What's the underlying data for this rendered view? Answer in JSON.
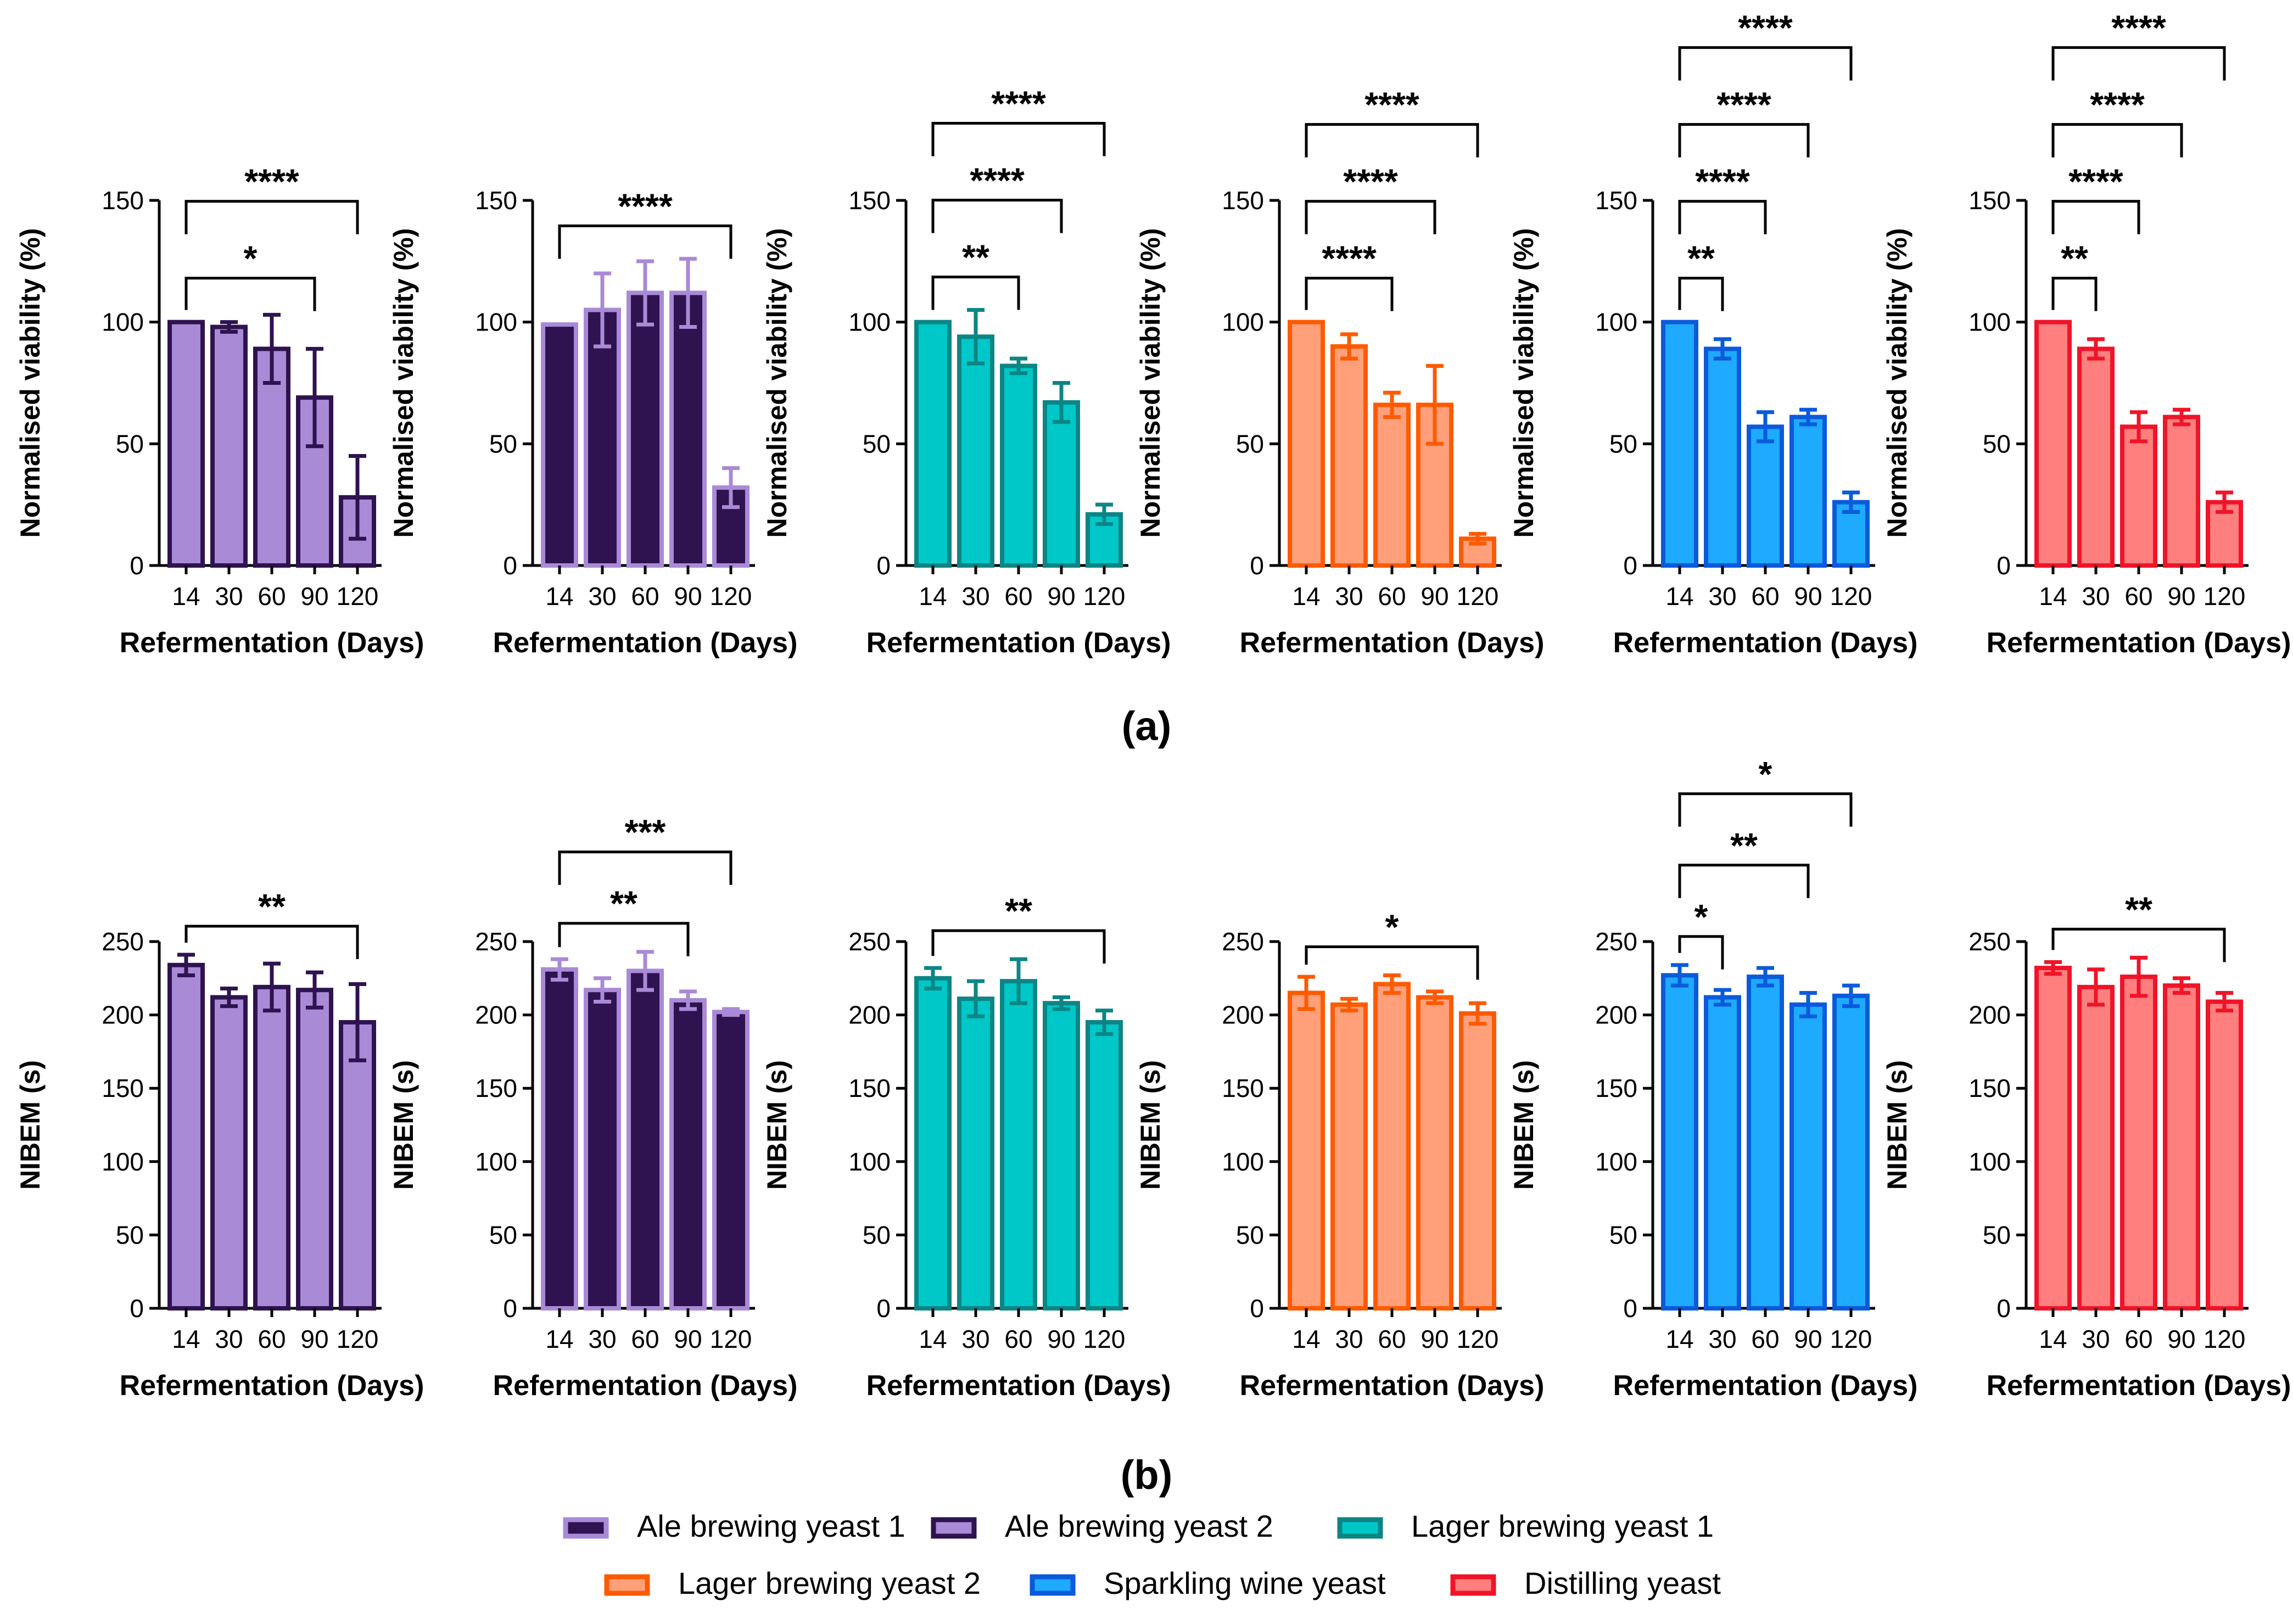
{
  "panel_labels": {
    "a": "(a)",
    "b": "(b)"
  },
  "legend": [
    {
      "name": "Ale brewing yeast 1",
      "fill": "#2e1350",
      "stroke": "#a98ad6"
    },
    {
      "name": "Ale brewing yeast 2",
      "fill": "#a98ad6",
      "stroke": "#2e1350"
    },
    {
      "name": "Lager brewing yeast 1",
      "fill": "#00c7c8",
      "stroke": "#0c8585"
    },
    {
      "name": "Lager brewing yeast 2",
      "fill": "#ffa07a",
      "stroke": "#ff5a00"
    },
    {
      "name": "Sparkling wine yeast",
      "fill": "#1eaaff",
      "stroke": "#0a5adc"
    },
    {
      "name": "Distilling yeast",
      "fill": "#ff7f7f",
      "stroke": "#f01428"
    }
  ],
  "chart_data": [
    {
      "type": "bar",
      "panel": "a",
      "series": "Ale brewing yeast 2",
      "fill": "#a98ad6",
      "stroke": "#2e1350",
      "categories": [
        "14",
        "30",
        "60",
        "90",
        "120"
      ],
      "values": [
        100,
        98,
        89,
        69,
        28
      ],
      "errors": [
        0,
        2,
        14,
        20,
        17
      ],
      "xlabel": "Refermentation (Days)",
      "ylabel": "Normalised viability (%)",
      "ylim": [
        0,
        150
      ],
      "yticks": [
        0,
        50,
        100,
        150
      ],
      "brackets": [
        {
          "from": 0,
          "to": 3,
          "label": "*"
        },
        {
          "from": 0,
          "to": 4,
          "label": "****"
        }
      ]
    },
    {
      "type": "bar",
      "panel": "a",
      "series": "Ale brewing yeast 1",
      "fill": "#2e1350",
      "stroke": "#a98ad6",
      "categories": [
        "14",
        "30",
        "60",
        "90",
        "120"
      ],
      "values": [
        99,
        105,
        112,
        112,
        32
      ],
      "errors": [
        0,
        15,
        13,
        14,
        8
      ],
      "xlabel": "Refermentation (Days)",
      "ylabel": "Normalised viability (%)",
      "ylim": [
        0,
        150
      ],
      "yticks": [
        0,
        50,
        100,
        150
      ],
      "brackets": [
        {
          "from": 0,
          "to": 4,
          "label": "****"
        }
      ]
    },
    {
      "type": "bar",
      "panel": "a",
      "series": "Lager brewing yeast 1",
      "fill": "#00c7c8",
      "stroke": "#0c8585",
      "categories": [
        "14",
        "30",
        "60",
        "90",
        "120"
      ],
      "values": [
        100,
        94,
        82,
        67,
        21
      ],
      "errors": [
        0,
        11,
        3,
        8,
        4
      ],
      "xlabel": "Refermentation (Days)",
      "ylabel": "Normalised viability (%)",
      "ylim": [
        0,
        150
      ],
      "yticks": [
        0,
        50,
        100,
        150
      ],
      "brackets": [
        {
          "from": 0,
          "to": 2,
          "label": "**"
        },
        {
          "from": 0,
          "to": 3,
          "label": "****"
        },
        {
          "from": 0,
          "to": 4,
          "label": "****"
        }
      ]
    },
    {
      "type": "bar",
      "panel": "a",
      "series": "Lager brewing yeast 2",
      "fill": "#ffa07a",
      "stroke": "#ff5a00",
      "categories": [
        "14",
        "30",
        "60",
        "90",
        "120"
      ],
      "values": [
        100,
        90,
        66,
        66,
        11
      ],
      "errors": [
        0,
        5,
        5,
        16,
        2
      ],
      "xlabel": "Refermentation (Days)",
      "ylabel": "Normalised viability (%)",
      "ylim": [
        0,
        150
      ],
      "yticks": [
        0,
        50,
        100,
        150
      ],
      "brackets": [
        {
          "from": 0,
          "to": 2,
          "label": "****"
        },
        {
          "from": 0,
          "to": 3,
          "label": "****"
        },
        {
          "from": 0,
          "to": 4,
          "label": "****"
        }
      ]
    },
    {
      "type": "bar",
      "panel": "a",
      "series": "Sparkling wine yeast",
      "fill": "#1eaaff",
      "stroke": "#0a5adc",
      "categories": [
        "14",
        "30",
        "60",
        "90",
        "120"
      ],
      "values": [
        100,
        89,
        57,
        61,
        26
      ],
      "errors": [
        0,
        4,
        6,
        3,
        4
      ],
      "xlabel": "Refermentation (Days)",
      "ylabel": "Normalised viability (%)",
      "ylim": [
        0,
        150
      ],
      "yticks": [
        0,
        50,
        100,
        150
      ],
      "brackets": [
        {
          "from": 0,
          "to": 1,
          "label": "**"
        },
        {
          "from": 0,
          "to": 2,
          "label": "****"
        },
        {
          "from": 0,
          "to": 3,
          "label": "****"
        },
        {
          "from": 0,
          "to": 4,
          "label": "****"
        }
      ]
    },
    {
      "type": "bar",
      "panel": "a",
      "series": "Distilling yeast",
      "fill": "#ff7f7f",
      "stroke": "#f01428",
      "categories": [
        "14",
        "30",
        "60",
        "90",
        "120"
      ],
      "values": [
        100,
        89,
        57,
        61,
        26
      ],
      "errors": [
        0,
        4,
        6,
        3,
        4
      ],
      "xlabel": "Refermentation (Days)",
      "ylabel": "Normalised viability (%)",
      "ylim": [
        0,
        150
      ],
      "yticks": [
        0,
        50,
        100,
        150
      ],
      "brackets": [
        {
          "from": 0,
          "to": 1,
          "label": "**"
        },
        {
          "from": 0,
          "to": 2,
          "label": "****"
        },
        {
          "from": 0,
          "to": 3,
          "label": "****"
        },
        {
          "from": 0,
          "to": 4,
          "label": "****"
        }
      ]
    },
    {
      "type": "bar",
      "panel": "b",
      "series": "Ale brewing yeast 2",
      "fill": "#a98ad6",
      "stroke": "#2e1350",
      "categories": [
        "14",
        "30",
        "60",
        "90",
        "120"
      ],
      "values": [
        234,
        212,
        219,
        217,
        195
      ],
      "errors": [
        7,
        6,
        16,
        12,
        26
      ],
      "xlabel": "Refermentation (Days)",
      "ylabel": "NIBEM (s)",
      "ylim": [
        0,
        250
      ],
      "yticks": [
        0,
        50,
        100,
        150,
        200,
        250
      ],
      "brackets": [
        {
          "from": 0,
          "to": 4,
          "label": "**"
        }
      ]
    },
    {
      "type": "bar",
      "panel": "b",
      "series": "Ale brewing yeast 1",
      "fill": "#2e1350",
      "stroke": "#a98ad6",
      "categories": [
        "14",
        "30",
        "60",
        "90",
        "120"
      ],
      "values": [
        231,
        217,
        230,
        210,
        202
      ],
      "errors": [
        7,
        8,
        13,
        6,
        2
      ],
      "xlabel": "Refermentation (Days)",
      "ylabel": "NIBEM (s)",
      "ylim": [
        0,
        250
      ],
      "yticks": [
        0,
        50,
        100,
        150,
        200,
        250
      ],
      "brackets": [
        {
          "from": 0,
          "to": 3,
          "label": "**"
        },
        {
          "from": 0,
          "to": 4,
          "label": "***"
        }
      ]
    },
    {
      "type": "bar",
      "panel": "b",
      "series": "Lager brewing yeast 1",
      "fill": "#00c7c8",
      "stroke": "#0c8585",
      "categories": [
        "14",
        "30",
        "60",
        "90",
        "120"
      ],
      "values": [
        225,
        211,
        223,
        208,
        195
      ],
      "errors": [
        7,
        12,
        15,
        4,
        8
      ],
      "xlabel": "Refermentation (Days)",
      "ylabel": "NIBEM (s)",
      "ylim": [
        0,
        250
      ],
      "yticks": [
        0,
        50,
        100,
        150,
        200,
        250
      ],
      "brackets": [
        {
          "from": 0,
          "to": 4,
          "label": "**"
        }
      ]
    },
    {
      "type": "bar",
      "panel": "b",
      "series": "Lager brewing yeast 2",
      "fill": "#ffa07a",
      "stroke": "#ff5a00",
      "categories": [
        "14",
        "30",
        "60",
        "90",
        "120"
      ],
      "values": [
        215,
        207,
        221,
        212,
        201
      ],
      "errors": [
        11,
        4,
        6,
        4,
        7
      ],
      "xlabel": "Refermentation (Days)",
      "ylabel": "NIBEM (s)",
      "ylim": [
        0,
        250
      ],
      "yticks": [
        0,
        50,
        100,
        150,
        200,
        250
      ],
      "brackets": [
        {
          "from": 0,
          "to": 4,
          "label": "*"
        }
      ]
    },
    {
      "type": "bar",
      "panel": "b",
      "series": "Sparkling wine yeast",
      "fill": "#1eaaff",
      "stroke": "#0a5adc",
      "categories": [
        "14",
        "30",
        "60",
        "90",
        "120"
      ],
      "values": [
        227,
        212,
        226,
        207,
        213
      ],
      "errors": [
        7,
        5,
        6,
        8,
        7
      ],
      "xlabel": "Refermentation (Days)",
      "ylabel": "NIBEM (s)",
      "ylim": [
        0,
        250
      ],
      "yticks": [
        0,
        50,
        100,
        150,
        200,
        250
      ],
      "brackets": [
        {
          "from": 0,
          "to": 1,
          "label": "*"
        },
        {
          "from": 0,
          "to": 3,
          "label": "**"
        },
        {
          "from": 0,
          "to": 4,
          "label": "*"
        }
      ]
    },
    {
      "type": "bar",
      "panel": "b",
      "series": "Distilling yeast",
      "fill": "#ff7f7f",
      "stroke": "#f01428",
      "categories": [
        "14",
        "30",
        "60",
        "90",
        "120"
      ],
      "values": [
        232,
        219,
        226,
        220,
        209
      ],
      "errors": [
        4,
        12,
        13,
        5,
        6
      ],
      "xlabel": "Refermentation (Days)",
      "ylabel": "NIBEM (s)",
      "ylim": [
        0,
        250
      ],
      "yticks": [
        0,
        50,
        100,
        150,
        200,
        250
      ],
      "brackets": [
        {
          "from": 0,
          "to": 4,
          "label": "**"
        }
      ]
    }
  ]
}
